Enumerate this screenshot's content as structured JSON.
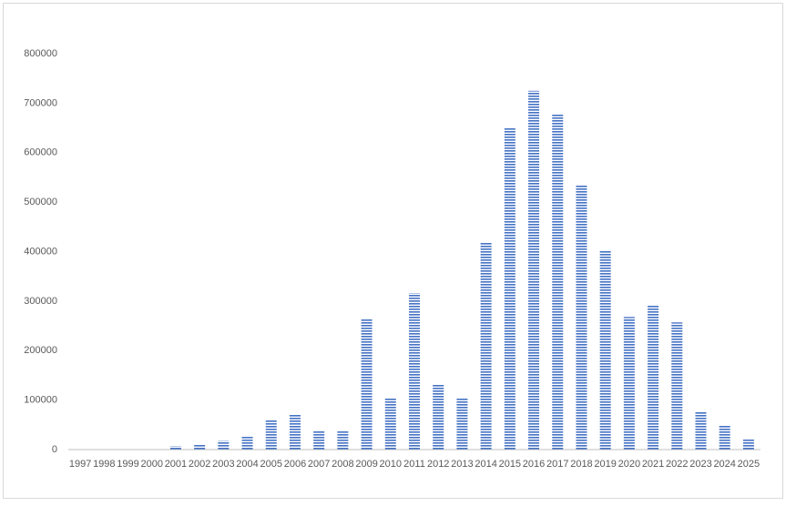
{
  "chart_data": {
    "type": "bar",
    "categories": [
      "1997",
      "1998",
      "1999",
      "2000",
      "2001",
      "2002",
      "2003",
      "2004",
      "2005",
      "2006",
      "2007",
      "2008",
      "2009",
      "2010",
      "2011",
      "2012",
      "2013",
      "2014",
      "2015",
      "2016",
      "2017",
      "2018",
      "2019",
      "2020",
      "2021",
      "2022",
      "2023",
      "2024",
      "2025"
    ],
    "values": [
      0,
      0,
      0,
      0,
      7000,
      11000,
      18000,
      28000,
      59000,
      70000,
      37000,
      37000,
      265000,
      103000,
      316000,
      132000,
      105000,
      419000,
      651000,
      725000,
      677000,
      535000,
      401000,
      268000,
      291000,
      257000,
      77000,
      48000,
      22000
    ],
    "color": "#4472c4",
    "ylim": [
      0,
      800000
    ],
    "yticks": [
      0,
      100000,
      200000,
      300000,
      400000,
      500000,
      600000,
      700000,
      800000
    ],
    "grid": false
  }
}
